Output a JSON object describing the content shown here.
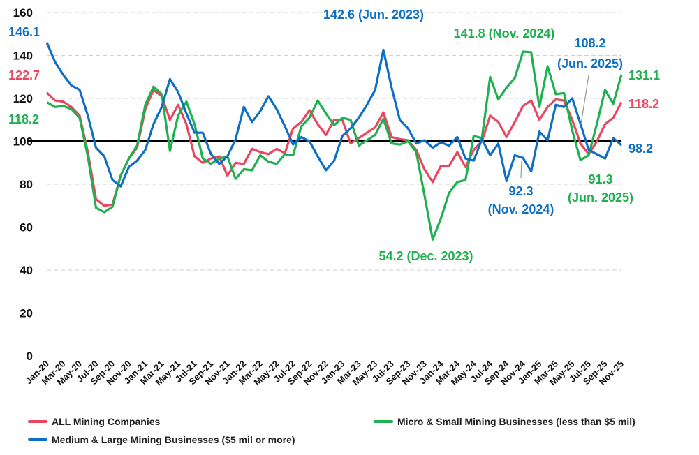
{
  "chart_data": {
    "type": "line",
    "title": "",
    "xlabel": "",
    "ylabel": "",
    "ylim": [
      0,
      160
    ],
    "yticks": [
      "0",
      "20",
      "40",
      "60",
      "80",
      "100",
      "120",
      "140",
      "160"
    ],
    "reference_line": 100,
    "grid": true,
    "legend_position": "bottom",
    "x": [
      "Jan-20",
      "Feb-20",
      "Mar-20",
      "Apr-20",
      "May-20",
      "Jun-20",
      "Jul-20",
      "Aug-20",
      "Sep-20",
      "Oct-20",
      "Nov-20",
      "Dec-20",
      "Jan-21",
      "Feb-21",
      "Mar-21",
      "Apr-21",
      "May-21",
      "Jun-21",
      "Jul-21",
      "Aug-21",
      "Sep-21",
      "Oct-21",
      "Nov-21",
      "Dec-21",
      "Jan-22",
      "Feb-22",
      "Mar-22",
      "Apr-22",
      "May-22",
      "Jun-22",
      "Jul-22",
      "Aug-22",
      "Sep-22",
      "Oct-22",
      "Nov-22",
      "Dec-22",
      "Jan-23",
      "Feb-23",
      "Mar-23",
      "Apr-23",
      "May-23",
      "Jun-23",
      "Jul-23",
      "Aug-23",
      "Sep-23",
      "Oct-23",
      "Nov-23",
      "Dec-23",
      "Jan-24",
      "Feb-24",
      "Mar-24",
      "Apr-24",
      "May-24",
      "Jun-24",
      "Jul-24",
      "Aug-24",
      "Sep-24",
      "Oct-24",
      "Nov-24",
      "Dec-24",
      "Jan-25",
      "Feb-25",
      "Mar-25",
      "Apr-25",
      "May-25",
      "Jun-25",
      "Jul-25",
      "Aug-25",
      "Sep-25",
      "Oct-25",
      "Nov-25"
    ],
    "series": [
      {
        "name": "ALL Mining Companies",
        "color": "#E8475F",
        "values": [
          122.7,
          119,
          118.5,
          116,
          112,
          95,
          73,
          70,
          70.5,
          84,
          92,
          97,
          115,
          124,
          121,
          110,
          117,
          108,
          93,
          90,
          92,
          93,
          84,
          90,
          89.5,
          96.5,
          95,
          94,
          96.5,
          94.5,
          106,
          109,
          114.5,
          108,
          103,
          110,
          110,
          99,
          101.5,
          104,
          106.5,
          113.5,
          102,
          101,
          100.5,
          96,
          87,
          81,
          88.5,
          88.5,
          95,
          88,
          96,
          100,
          112,
          109,
          102,
          109,
          116.5,
          119,
          110,
          116,
          119.5,
          119,
          110,
          99,
          94,
          100,
          108,
          111,
          118.2
        ]
      },
      {
        "name": "Micro & Small Mining Businesses (less than $5 mil)",
        "color": "#1FB04F",
        "values": [
          118.2,
          116,
          116.5,
          115,
          111,
          93,
          69,
          67,
          69.5,
          84,
          92,
          98,
          117,
          125.5,
          122,
          95.5,
          112,
          118.5,
          108,
          92,
          89.5,
          92,
          93,
          82.5,
          87,
          86.5,
          93.5,
          90.5,
          89.5,
          94,
          93.5,
          107,
          111,
          119,
          113,
          107.5,
          111,
          110,
          98,
          100.5,
          103,
          110.5,
          99,
          98.5,
          100,
          95,
          75,
          54.2,
          64,
          76,
          81,
          82,
          102.5,
          101.5,
          130,
          119.5,
          125,
          129.5,
          141.8,
          141.5,
          116,
          135,
          122,
          122.5,
          105,
          91.3,
          93.5,
          108,
          124,
          117.5,
          131.1
        ]
      },
      {
        "name": "Medium & Large Mining Businesses ($5 mil or more)",
        "color": "#0E6FC4",
        "values": [
          146.1,
          137,
          131,
          126,
          124,
          112,
          97,
          93,
          82,
          79,
          88,
          91,
          96,
          108,
          116,
          129,
          123,
          113,
          104,
          104,
          94,
          89.5,
          93,
          101,
          116,
          109,
          114,
          121,
          115,
          107,
          98.5,
          102,
          100,
          93,
          86.5,
          91,
          102.5,
          106,
          111,
          117,
          124,
          142.6,
          125,
          110,
          106,
          99,
          100.5,
          97,
          99.5,
          98,
          102,
          92,
          91,
          101,
          93.5,
          99,
          81.5,
          93.5,
          92.3,
          86,
          104.5,
          100.5,
          117,
          116,
          120,
          108.2,
          96,
          94,
          92,
          101.5,
          98.2
        ]
      }
    ],
    "annotations": {
      "blue_start": "146.1",
      "red_start": "122.7",
      "green_start": "118.2",
      "blue_peak": "142.6 (Jun. 2023)",
      "green_peak": "141.8 (Nov. 2024)",
      "blue_jun25_value": "108.2",
      "blue_jun25_date": "(Jun. 2025)",
      "green_end": "131.1",
      "red_end": "118.2",
      "blue_end": "98.2",
      "blue_nov24_value": "92.3",
      "blue_nov24_date": "(Nov. 2024)",
      "green_jun25_value": "91.3",
      "green_jun25_date": "(Jun. 2025)",
      "green_low": "54.2 (Dec. 2023)"
    }
  }
}
